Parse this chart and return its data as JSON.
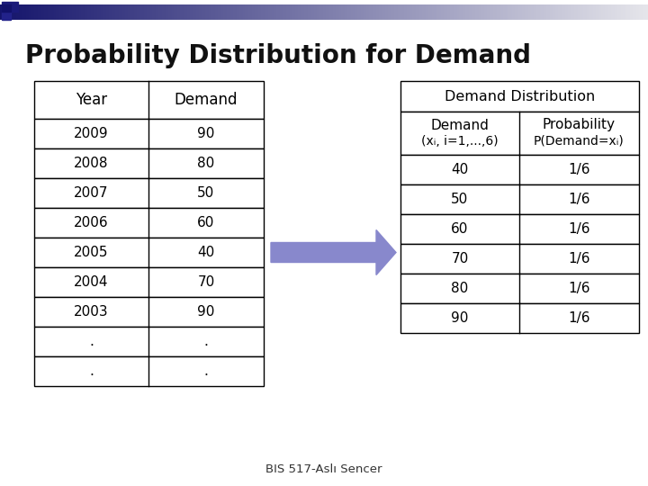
{
  "title": "Probability Distribution for Demand",
  "title_fontsize": 20,
  "background_color": "#ffffff",
  "footer": "BIS 517-Aslı Sencer",
  "left_table": {
    "headers": [
      "Year",
      "Demand"
    ],
    "rows": [
      [
        "2009",
        "90"
      ],
      [
        "2008",
        "80"
      ],
      [
        "2007",
        "50"
      ],
      [
        "2006",
        "60"
      ],
      [
        "2005",
        "40"
      ],
      [
        "2004",
        "70"
      ],
      [
        "2003",
        "90"
      ],
      [
        ".",
        "."
      ],
      [
        ".",
        "."
      ]
    ]
  },
  "right_table": {
    "title": "Demand Distribution",
    "col1_header_line1": "Demand",
    "col1_header_line2": "(xᵢ, i=1,...,6)",
    "col2_header_line1": "Probability",
    "col2_header_line2": "P(Demand=xᵢ)",
    "rows": [
      [
        "40",
        "1/6"
      ],
      [
        "50",
        "1/6"
      ],
      [
        "60",
        "1/6"
      ],
      [
        "70",
        "1/6"
      ],
      [
        "80",
        "1/6"
      ],
      [
        "90",
        "1/6"
      ]
    ]
  },
  "arrow_color": "#8888cc",
  "header_bar_dark": "#1a1a6e",
  "header_bar_light": "#c8cce0"
}
